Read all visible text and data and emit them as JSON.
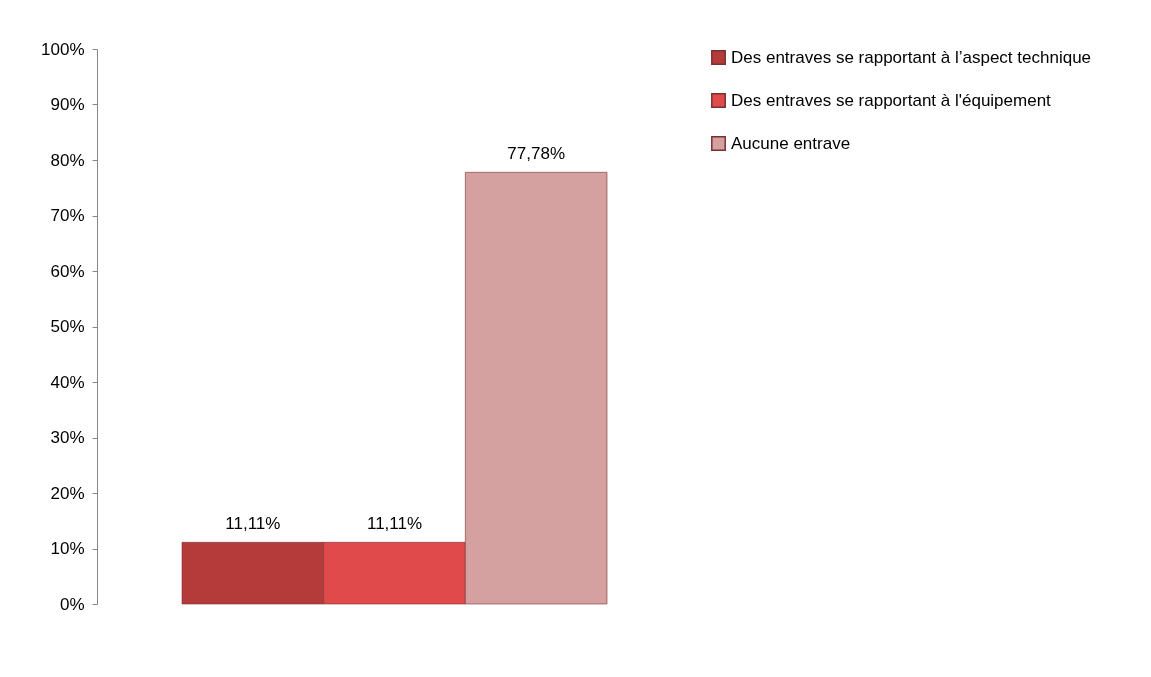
{
  "chart_data": {
    "type": "bar",
    "categories": [
      null
    ],
    "series": [
      {
        "name": "Des entraves se rapportant à l’aspect technique",
        "color": "#b53a3a",
        "values": [
          11.11
        ],
        "value_labels": [
          "11,11%"
        ]
      },
      {
        "name": "Des entraves se rapportant à l'équipement",
        "color": "#e04a4a",
        "values": [
          11.11
        ],
        "value_labels": [
          "11,11%"
        ]
      },
      {
        "name": "Aucune entrave",
        "color": "#d4a0a0",
        "values": [
          77.78
        ],
        "value_labels": [
          "77,78%"
        ]
      }
    ],
    "ylim": [
      0,
      100
    ],
    "yticks": [
      {
        "value": 0,
        "label": "0%"
      },
      {
        "value": 10,
        "label": "10%"
      },
      {
        "value": 20,
        "label": "20%"
      },
      {
        "value": 30,
        "label": "30%"
      },
      {
        "value": 40,
        "label": "40%"
      },
      {
        "value": 50,
        "label": "50%"
      },
      {
        "value": 60,
        "label": "60%"
      },
      {
        "value": 70,
        "label": "70%"
      },
      {
        "value": 80,
        "label": "80%"
      },
      {
        "value": 90,
        "label": "90%"
      },
      {
        "value": 100,
        "label": "100%"
      }
    ],
    "legend": "right",
    "grid": false,
    "tick_labels": "y"
  }
}
